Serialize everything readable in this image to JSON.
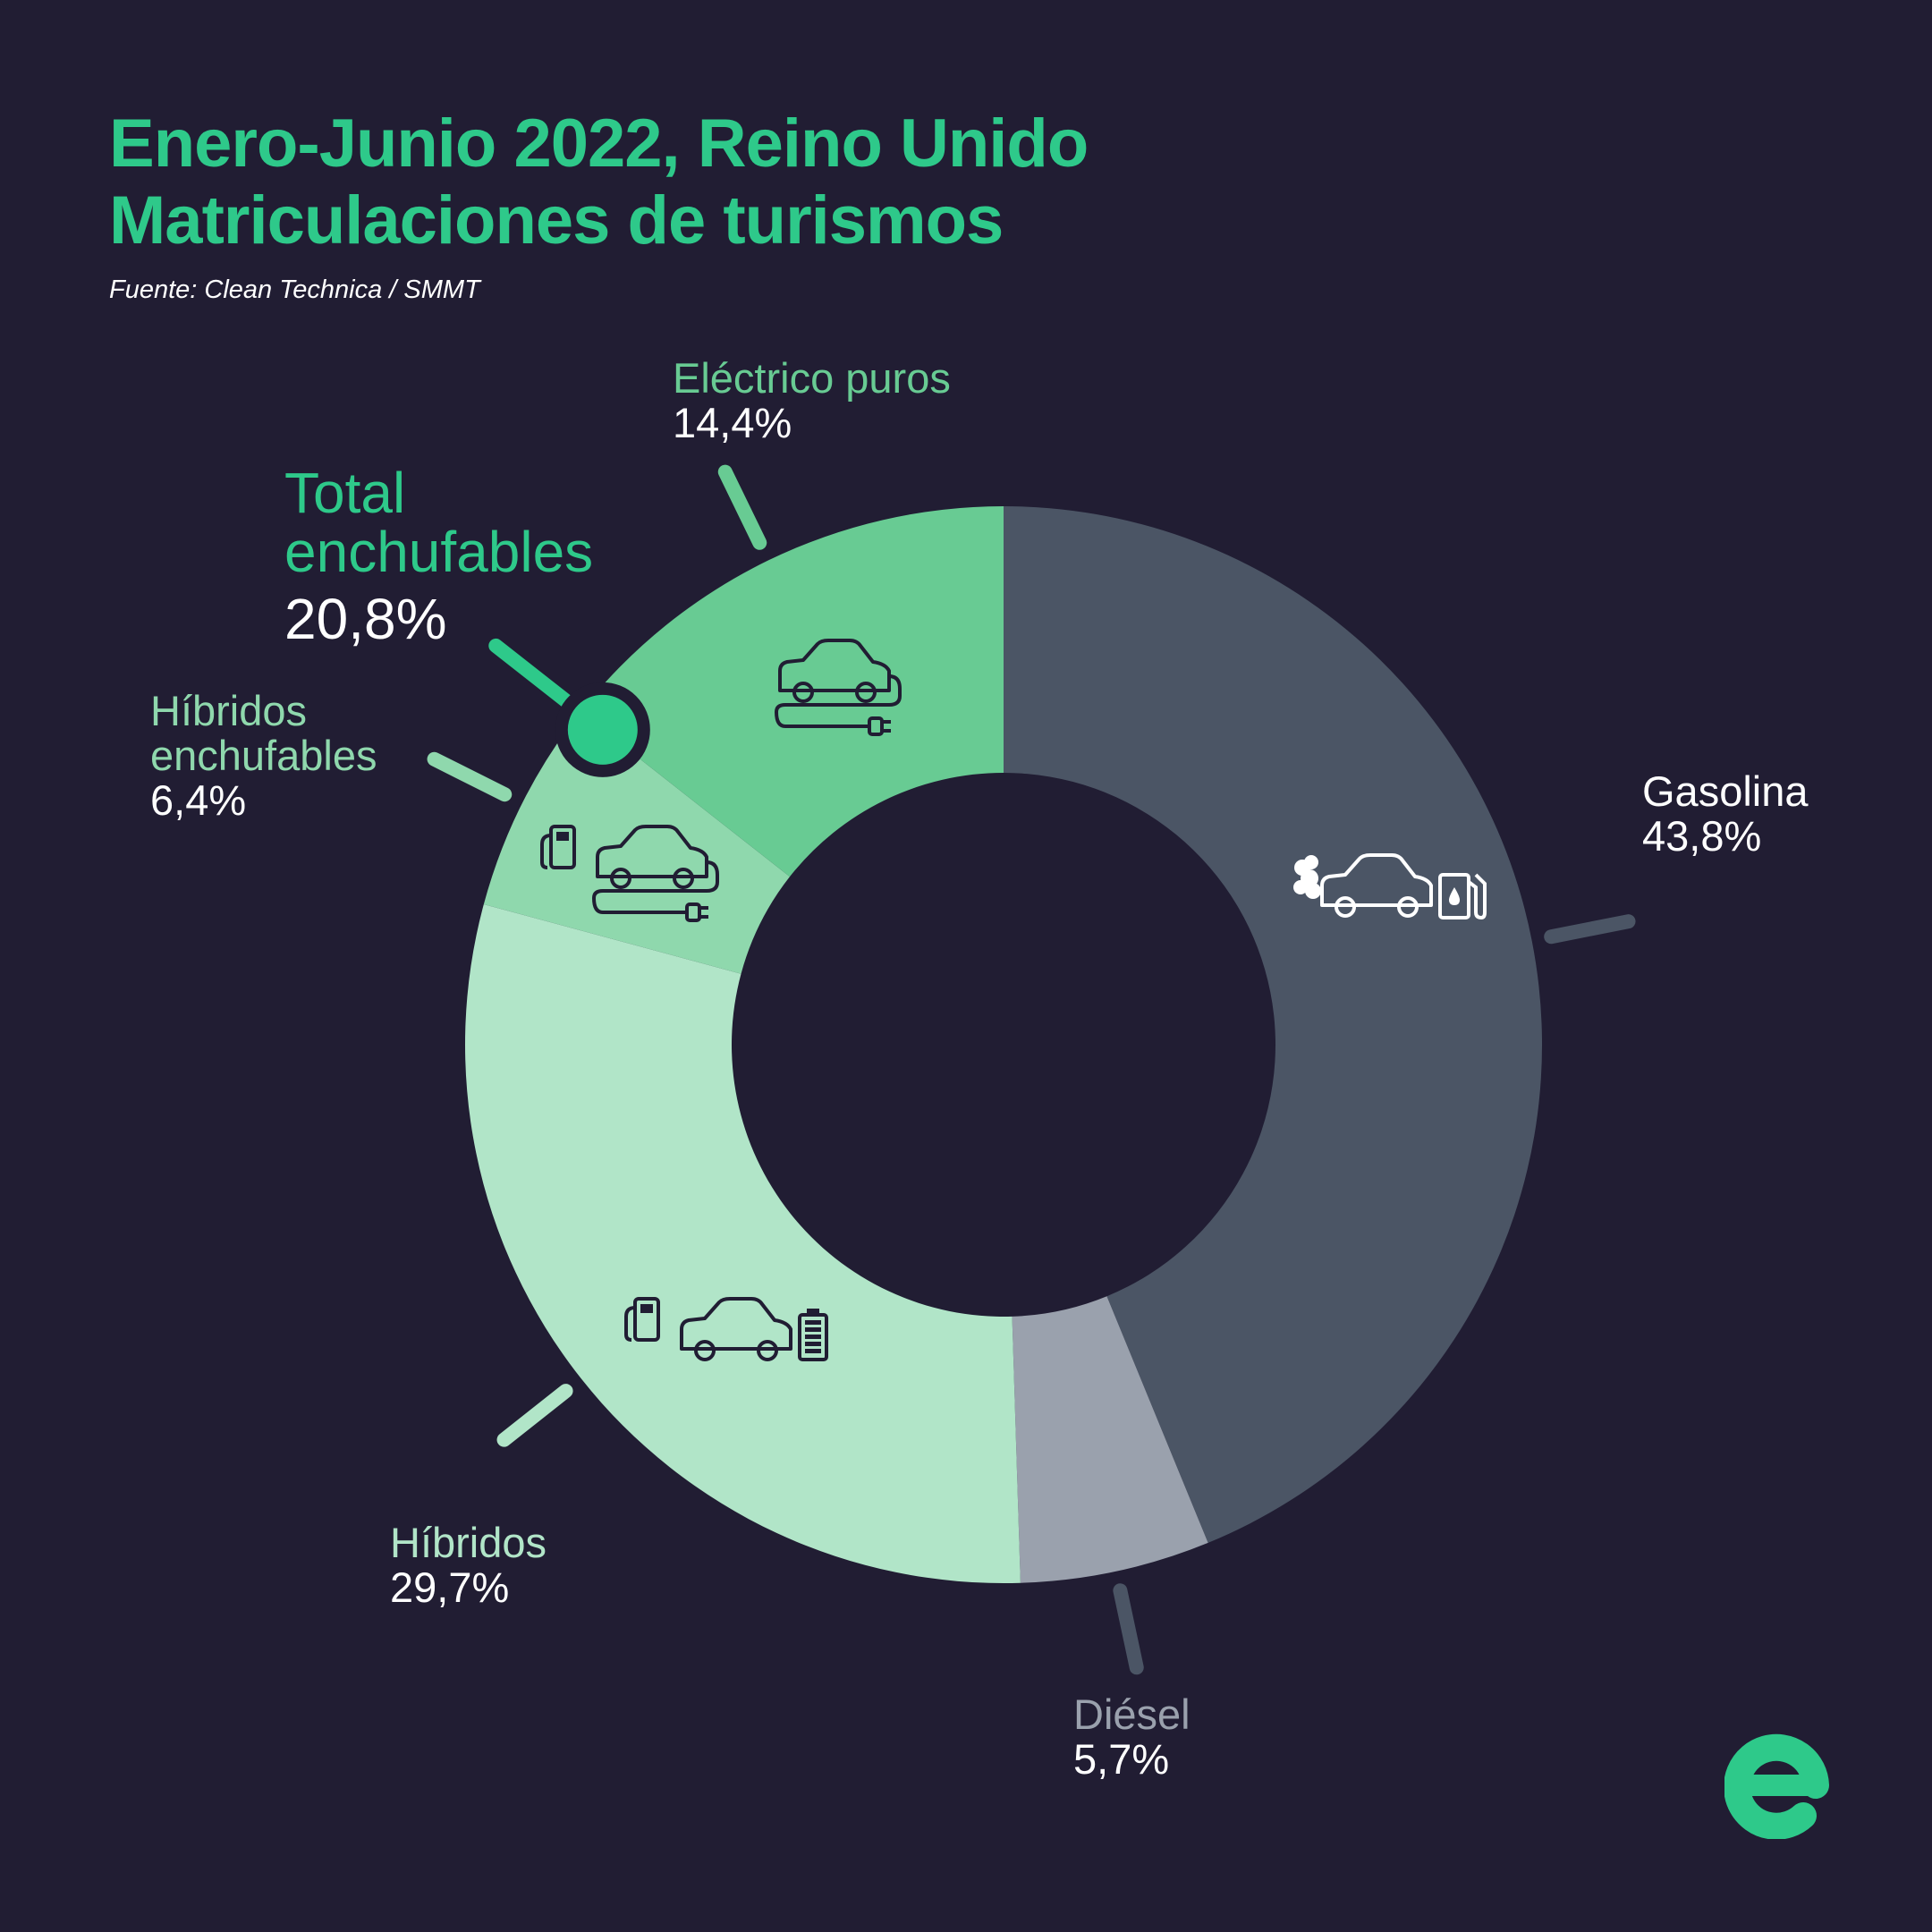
{
  "header": {
    "title_line1": "Enero-Junio 2022, Reino Unido",
    "title_line2": "Matriculaciones de turismos",
    "source": "Fuente: Clean Technica / SMMT"
  },
  "total_plugins": {
    "label_line1": "Total",
    "label_line2": "enchufables",
    "value": "20,8%"
  },
  "colors": {
    "background": "#211d33",
    "accent": "#2ec98a",
    "gasolina": "#4b5565",
    "diesel": "#9aa1ad",
    "hibridos": "#b1e5c8",
    "hibridos_enchufables": "#8fd8ad",
    "electricos": "#68cb93"
  },
  "chart_data": {
    "type": "pie",
    "style": "donut",
    "slices": [
      {
        "key": "gasolina",
        "label": "Gasolina",
        "value": 43.8,
        "display": "43,8%",
        "icon": "petrol-car-icon"
      },
      {
        "key": "diesel",
        "label": "Diésel",
        "value": 5.7,
        "display": "5,7%",
        "icon": ""
      },
      {
        "key": "hibridos",
        "label": "Híbridos",
        "value": 29.7,
        "display": "29,7%",
        "icon": "hybrid-car-battery-icon"
      },
      {
        "key": "hibridos_enchufables",
        "label_line1": "Híbridos",
        "label_line2": "enchufables",
        "value": 6.4,
        "display": "6,4%",
        "icon": "plugin-hybrid-car-icon"
      },
      {
        "key": "electricos",
        "label": "Eléctrico puros",
        "value": 14.4,
        "display": "14,4%",
        "icon": "electric-car-plug-icon"
      }
    ]
  }
}
